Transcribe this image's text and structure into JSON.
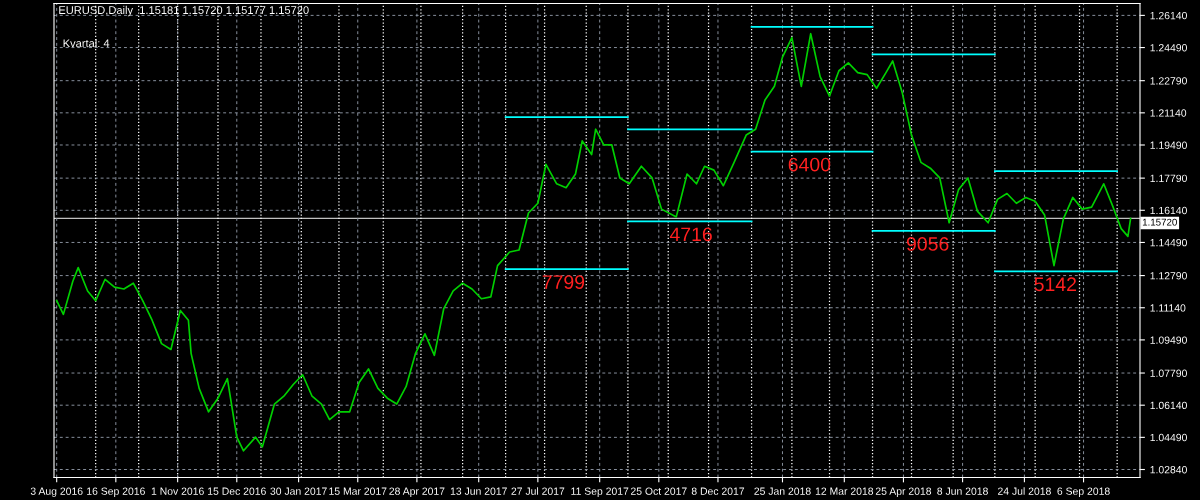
{
  "chart_data": {
    "type": "line",
    "title": "EURUSD,Daily  1.15181 1.15720 1.15177 1.15720",
    "annotations": [
      "Kvartal: 4",
      {
        "text": "7799",
        "x": "2017-08-15",
        "y": 1.1312
      },
      {
        "text": "4716",
        "x": "2017-11-18",
        "y": 1.1557
      },
      {
        "text": "6400",
        "x": "2018-02-14",
        "y": 1.1915
      },
      {
        "text": "9056",
        "x": "2018-05-13",
        "y": 1.1508
      },
      {
        "text": "5142",
        "x": "2018-08-16",
        "y": 1.1301
      }
    ],
    "xlim": [
      "2016-08-01",
      "2018-10-18"
    ],
    "xticks": [
      {
        "value": "2016-08-03",
        "label": "3 Aug 2016"
      },
      {
        "value": "2016-09-16",
        "label": "16 Sep 2016"
      },
      {
        "value": "2016-11-01",
        "label": "1 Nov 2016"
      },
      {
        "value": "2016-12-15",
        "label": "15 Dec 2016"
      },
      {
        "value": "2017-01-30",
        "label": "30 Jan 2017"
      },
      {
        "value": "2017-03-15",
        "label": "15 Mar 2017"
      },
      {
        "value": "2017-04-28",
        "label": "28 Apr 2017"
      },
      {
        "value": "2017-06-13",
        "label": "13 Jun 2017"
      },
      {
        "value": "2017-07-27",
        "label": "27 Jul 2017"
      },
      {
        "value": "2017-09-11",
        "label": "11 Sep 2017"
      },
      {
        "value": "2017-10-25",
        "label": "25 Oct 2017"
      },
      {
        "value": "2017-12-08",
        "label": "8 Dec 2017"
      },
      {
        "value": "2018-01-25",
        "label": "25 Jan 2018"
      },
      {
        "value": "2018-03-12",
        "label": "12 Mar 2018"
      },
      {
        "value": "2018-04-25",
        "label": "25 Apr 2018"
      },
      {
        "value": "2018-06-08",
        "label": "8 Jun 2018"
      },
      {
        "value": "2018-07-24",
        "label": "24 Jul 2018"
      },
      {
        "value": "2018-09-06",
        "label": "6 Sep 2018"
      }
    ],
    "ylim": [
      1.0243,
      1.2675
    ],
    "yticks": [
      {
        "value": 1.0284,
        "label": "1.02840"
      },
      {
        "value": 1.0449,
        "label": "1.04490"
      },
      {
        "value": 1.0614,
        "label": "1.06140"
      },
      {
        "value": 1.0779,
        "label": "1.07790"
      },
      {
        "value": 1.0949,
        "label": "1.09490"
      },
      {
        "value": 1.1114,
        "label": "1.11140"
      },
      {
        "value": 1.1279,
        "label": "1.12790"
      },
      {
        "value": 1.1449,
        "label": "1.14490"
      },
      {
        "value": 1.1614,
        "label": "1.16140"
      },
      {
        "value": 1.1779,
        "label": "1.17790"
      },
      {
        "value": 1.1949,
        "label": "1.19490"
      },
      {
        "value": 1.2114,
        "label": "1.21140"
      },
      {
        "value": 1.2279,
        "label": "1.22790"
      },
      {
        "value": 1.2449,
        "label": "1.24490"
      },
      {
        "value": 1.2614,
        "label": "1.26140"
      }
    ],
    "grid": true,
    "ref_lines": [
      {
        "axis": "y",
        "value": 1.1572,
        "label": "1.15720",
        "color": "#c0c0c0",
        "line_style": "solid"
      },
      {
        "axis": "x",
        "value": "2016-09-01",
        "color": "#ffffff",
        "line_style": "dotted"
      },
      {
        "axis": "x",
        "value": "2016-10-03",
        "color": "#ffffff",
        "line_style": "dotted"
      },
      {
        "axis": "x",
        "value": "2016-11-01",
        "color": "#ffffff",
        "line_style": "dotted"
      },
      {
        "axis": "x",
        "value": "2016-12-01",
        "color": "#ffffff",
        "line_style": "dotted"
      },
      {
        "axis": "x",
        "value": "2017-01-02",
        "color": "#ffffff",
        "line_style": "dotted"
      },
      {
        "axis": "x",
        "value": "2017-02-01",
        "color": "#ffffff",
        "line_style": "dotted"
      },
      {
        "axis": "x",
        "value": "2017-03-01",
        "color": "#ffffff",
        "line_style": "dotted"
      },
      {
        "axis": "x",
        "value": "2017-04-03",
        "color": "#ffffff",
        "line_style": "dotted"
      },
      {
        "axis": "x",
        "value": "2017-05-01",
        "color": "#ffffff",
        "line_style": "dotted"
      },
      {
        "axis": "x",
        "value": "2017-06-01",
        "color": "#ffffff",
        "line_style": "dotted"
      },
      {
        "axis": "x",
        "value": "2017-07-03",
        "color": "#ffffff",
        "line_style": "dotted"
      },
      {
        "axis": "x",
        "value": "2017-08-01",
        "color": "#ffffff",
        "line_style": "dotted"
      },
      {
        "axis": "x",
        "value": "2017-09-01",
        "color": "#ffffff",
        "line_style": "dotted"
      },
      {
        "axis": "x",
        "value": "2017-10-02",
        "color": "#ffffff",
        "line_style": "dotted"
      },
      {
        "axis": "x",
        "value": "2017-11-01",
        "color": "#ffffff",
        "line_style": "dotted"
      },
      {
        "axis": "x",
        "value": "2017-12-01",
        "color": "#ffffff",
        "line_style": "dotted"
      },
      {
        "axis": "x",
        "value": "2018-01-02",
        "color": "#ffffff",
        "line_style": "dotted"
      },
      {
        "axis": "x",
        "value": "2018-02-01",
        "color": "#ffffff",
        "line_style": "dotted"
      },
      {
        "axis": "x",
        "value": "2018-03-01",
        "color": "#ffffff",
        "line_style": "dotted"
      },
      {
        "axis": "x",
        "value": "2018-04-02",
        "color": "#ffffff",
        "line_style": "dotted"
      },
      {
        "axis": "x",
        "value": "2018-05-01",
        "color": "#ffffff",
        "line_style": "dotted"
      },
      {
        "axis": "x",
        "value": "2018-06-01",
        "color": "#ffffff",
        "line_style": "dotted"
      },
      {
        "axis": "x",
        "value": "2018-07-02",
        "color": "#ffffff",
        "line_style": "dotted"
      },
      {
        "axis": "x",
        "value": "2018-08-01",
        "color": "#ffffff",
        "line_style": "dotted"
      },
      {
        "axis": "x",
        "value": "2018-09-03",
        "color": "#ffffff",
        "line_style": "dotted"
      },
      {
        "axis": "x",
        "value": "2018-10-01",
        "color": "#ffffff",
        "line_style": "dotted"
      }
    ],
    "series": [
      {
        "color": "#00d000",
        "x": [
          "2016-08-03",
          "2016-08-08",
          "2016-08-15",
          "2016-08-19",
          "2016-08-26",
          "2016-09-01",
          "2016-09-08",
          "2016-09-15",
          "2016-09-22",
          "2016-09-29",
          "2016-10-06",
          "2016-10-13",
          "2016-10-20",
          "2016-10-27",
          "2016-11-03",
          "2016-11-09",
          "2016-11-11",
          "2016-11-17",
          "2016-11-24",
          "2016-12-01",
          "2016-12-08",
          "2016-12-15",
          "2016-12-20",
          "2016-12-29",
          "2017-01-03",
          "2017-01-12",
          "2017-01-19",
          "2017-01-26",
          "2017-02-02",
          "2017-02-09",
          "2017-02-16",
          "2017-02-22",
          "2017-03-01",
          "2017-03-09",
          "2017-03-16",
          "2017-03-23",
          "2017-03-30",
          "2017-04-06",
          "2017-04-13",
          "2017-04-20",
          "2017-04-27",
          "2017-05-04",
          "2017-05-11",
          "2017-05-18",
          "2017-05-25",
          "2017-06-01",
          "2017-06-08",
          "2017-06-15",
          "2017-06-22",
          "2017-06-27",
          "2017-07-06",
          "2017-07-13",
          "2017-07-20",
          "2017-07-27",
          "2017-08-02",
          "2017-08-10",
          "2017-08-17",
          "2017-08-24",
          "2017-08-29",
          "2017-09-05",
          "2017-09-08",
          "2017-09-14",
          "2017-09-20",
          "2017-09-26",
          "2017-10-03",
          "2017-10-12",
          "2017-10-20",
          "2017-10-27",
          "2017-11-07",
          "2017-11-15",
          "2017-11-22",
          "2017-11-28",
          "2017-12-05",
          "2017-12-12",
          "2017-12-20",
          "2017-12-29",
          "2018-01-05",
          "2018-01-12",
          "2018-01-19",
          "2018-01-25",
          "2018-02-01",
          "2018-02-08",
          "2018-02-15",
          "2018-02-22",
          "2018-03-01",
          "2018-03-08",
          "2018-03-15",
          "2018-03-22",
          "2018-03-29",
          "2018-04-05",
          "2018-04-12",
          "2018-04-17",
          "2018-04-24",
          "2018-05-01",
          "2018-05-08",
          "2018-05-15",
          "2018-05-22",
          "2018-05-29",
          "2018-06-05",
          "2018-06-12",
          "2018-06-19",
          "2018-06-27",
          "2018-07-04",
          "2018-07-11",
          "2018-07-18",
          "2018-07-25",
          "2018-08-01",
          "2018-08-08",
          "2018-08-15",
          "2018-08-22",
          "2018-08-29",
          "2018-09-05",
          "2018-09-12",
          "2018-09-21",
          "2018-09-28",
          "2018-10-04",
          "2018-10-09",
          "2018-10-11"
        ],
        "values": [
          1.115,
          1.108,
          1.125,
          1.132,
          1.12,
          1.115,
          1.126,
          1.122,
          1.121,
          1.124,
          1.115,
          1.105,
          1.093,
          1.09,
          1.11,
          1.105,
          1.088,
          1.07,
          1.058,
          1.065,
          1.075,
          1.045,
          1.038,
          1.045,
          1.04,
          1.062,
          1.066,
          1.072,
          1.077,
          1.066,
          1.062,
          1.054,
          1.058,
          1.058,
          1.073,
          1.08,
          1.07,
          1.065,
          1.062,
          1.071,
          1.088,
          1.098,
          1.087,
          1.111,
          1.12,
          1.124,
          1.121,
          1.116,
          1.117,
          1.133,
          1.14,
          1.141,
          1.16,
          1.165,
          1.185,
          1.175,
          1.173,
          1.18,
          1.197,
          1.19,
          1.203,
          1.195,
          1.195,
          1.178,
          1.175,
          1.184,
          1.178,
          1.162,
          1.158,
          1.18,
          1.175,
          1.184,
          1.182,
          1.174,
          1.186,
          1.2,
          1.203,
          1.218,
          1.225,
          1.24,
          1.25,
          1.225,
          1.252,
          1.23,
          1.22,
          1.233,
          1.237,
          1.232,
          1.231,
          1.224,
          1.232,
          1.238,
          1.222,
          1.2,
          1.186,
          1.183,
          1.178,
          1.155,
          1.172,
          1.178,
          1.161,
          1.155,
          1.167,
          1.17,
          1.165,
          1.168,
          1.166,
          1.159,
          1.133,
          1.157,
          1.168,
          1.162,
          1.163,
          1.175,
          1.163,
          1.152,
          1.148,
          1.1572
        ]
      },
      {
        "type": "line",
        "color": "#00ffff",
        "x": [
          "2017-07-03",
          "2017-10-02"
        ],
        "values": [
          1.2092,
          1.2092
        ]
      },
      {
        "type": "line",
        "color": "#00ffff",
        "x": [
          "2017-07-03",
          "2017-10-02"
        ],
        "values": [
          1.1312,
          1.1312
        ]
      },
      {
        "type": "line",
        "color": "#00ffff",
        "x": [
          "2017-10-02",
          "2018-01-02"
        ],
        "values": [
          1.2029,
          1.2029
        ]
      },
      {
        "type": "line",
        "color": "#00ffff",
        "x": [
          "2017-10-02",
          "2018-01-02"
        ],
        "values": [
          1.1557,
          1.1557
        ]
      },
      {
        "type": "line",
        "color": "#00ffff",
        "x": [
          "2018-01-02",
          "2018-04-02"
        ],
        "values": [
          1.2555,
          1.2555
        ]
      },
      {
        "type": "line",
        "color": "#00ffff",
        "x": [
          "2018-01-02",
          "2018-04-02"
        ],
        "values": [
          1.1915,
          1.1915
        ]
      },
      {
        "type": "line",
        "color": "#00ffff",
        "x": [
          "2018-04-02",
          "2018-07-02"
        ],
        "values": [
          1.2414,
          1.2414
        ]
      },
      {
        "type": "line",
        "color": "#00ffff",
        "x": [
          "2018-04-02",
          "2018-07-02"
        ],
        "values": [
          1.1508,
          1.1508
        ]
      },
      {
        "type": "line",
        "color": "#00ffff",
        "x": [
          "2018-07-02",
          "2018-10-01"
        ],
        "values": [
          1.1815,
          1.1815
        ]
      },
      {
        "type": "line",
        "color": "#00ffff",
        "x": [
          "2018-07-02",
          "2018-10-01"
        ],
        "values": [
          1.1301,
          1.1301
        ]
      }
    ]
  }
}
